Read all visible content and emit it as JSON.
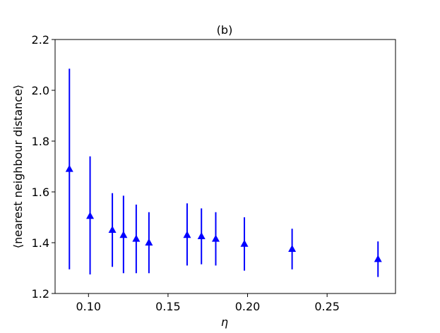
{
  "chart_data": {
    "type": "scatter",
    "title": "(b)",
    "xlabel": "η",
    "ylabel": "⟨nearest neighbour distance⟩",
    "xlim": [
      0.079,
      0.293
    ],
    "ylim": [
      1.2,
      2.2
    ],
    "xticks": [
      0.1,
      0.15,
      0.2,
      0.25
    ],
    "xtick_labels": [
      "0.10",
      "0.15",
      "0.20",
      "0.25"
    ],
    "yticks": [
      1.2,
      1.4,
      1.6,
      1.8,
      2.0,
      2.2
    ],
    "ytick_labels": [
      "1.2",
      "1.4",
      "1.6",
      "1.8",
      "2.0",
      "2.2"
    ],
    "grid": false,
    "marker": "triangle-up",
    "color": "#0000ff",
    "series": [
      {
        "x": [
          0.088,
          0.101,
          0.115,
          0.122,
          0.13,
          0.138,
          0.162,
          0.171,
          0.18,
          0.198,
          0.228,
          0.282
        ],
        "y": [
          1.69,
          1.505,
          1.45,
          1.43,
          1.415,
          1.4,
          1.43,
          1.425,
          1.415,
          1.395,
          1.375,
          1.335
        ],
        "err_low": [
          1.295,
          1.275,
          1.305,
          1.28,
          1.28,
          1.28,
          1.31,
          1.315,
          1.31,
          1.29,
          1.295,
          1.265
        ],
        "err_high": [
          2.085,
          1.74,
          1.595,
          1.585,
          1.55,
          1.52,
          1.555,
          1.535,
          1.52,
          1.5,
          1.455,
          1.405
        ]
      }
    ]
  }
}
